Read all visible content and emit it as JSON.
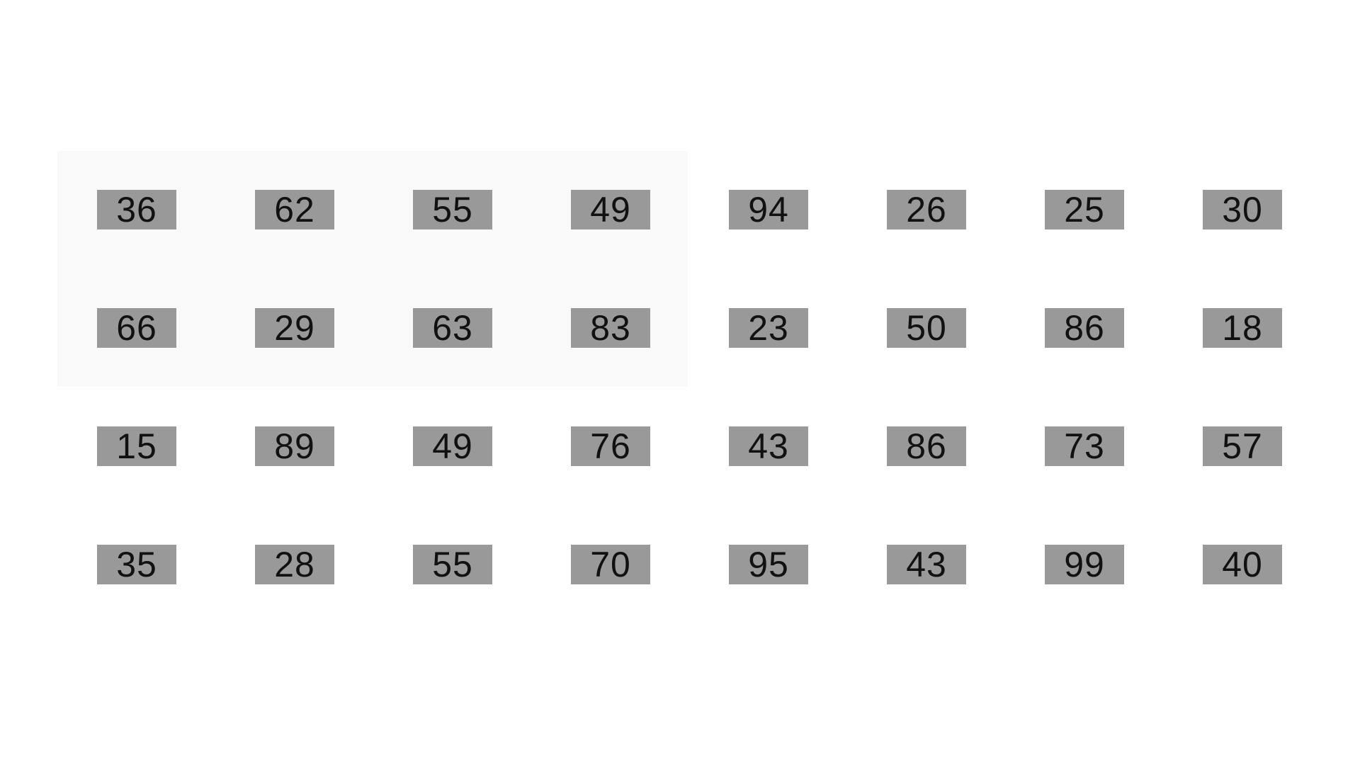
{
  "colors": {
    "page_background": "#ffffff",
    "highlight_background": "#f9f9f9",
    "tile_background": "#999999",
    "tile_text": "#111111"
  },
  "grid": {
    "rows": [
      [
        "36",
        "62",
        "55",
        "49",
        "94",
        "26",
        "25",
        "30"
      ],
      [
        "66",
        "29",
        "63",
        "83",
        "23",
        "50",
        "86",
        "18"
      ],
      [
        "15",
        "89",
        "49",
        "76",
        "43",
        "86",
        "73",
        "57"
      ],
      [
        "35",
        "28",
        "55",
        "70",
        "95",
        "43",
        "99",
        "40"
      ]
    ],
    "highlight": {
      "rows": [
        0,
        1
      ],
      "columns": [
        0,
        1,
        2,
        3
      ]
    }
  }
}
